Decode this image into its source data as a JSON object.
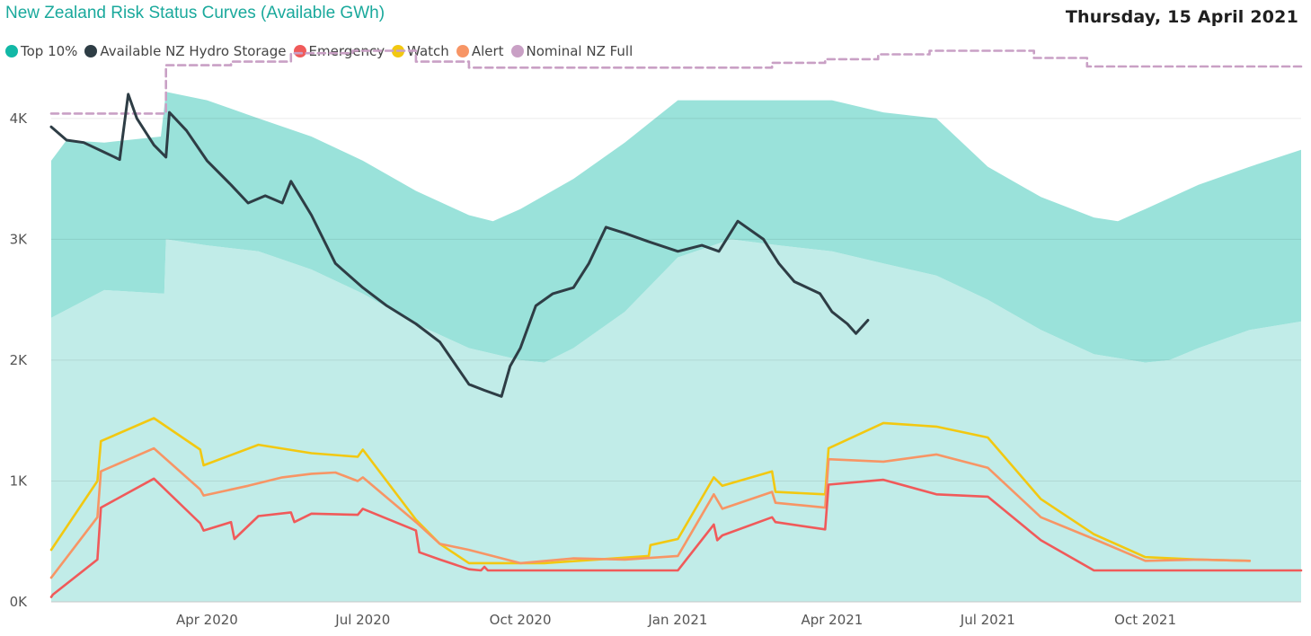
{
  "header": {
    "title": "New Zealand Risk Status Curves (Available GWh)",
    "date": "Thursday, 15 April 2021"
  },
  "legend": [
    {
      "label": "Top 10%",
      "color": "#12b8a6"
    },
    {
      "label": "Available NZ Hydro Storage",
      "color": "#2e3d45"
    },
    {
      "label": "Emergency",
      "color": "#f05a5a"
    },
    {
      "label": "Watch",
      "color": "#f2c811"
    },
    {
      "label": "Alert",
      "color": "#f79565"
    },
    {
      "label": "Nominal NZ Full",
      "color": "#c9a0c5"
    }
  ],
  "chart_data": {
    "type": "line",
    "title": "New Zealand Risk Status Curves (Available GWh)",
    "x_axis": {
      "type": "date",
      "range": [
        "2020-01-01",
        "2021-12-31"
      ],
      "ticks": [
        {
          "date": "2020-04-01",
          "label": "Apr 2020"
        },
        {
          "date": "2020-07-01",
          "label": "Jul 2020"
        },
        {
          "date": "2020-10-01",
          "label": "Oct 2020"
        },
        {
          "date": "2021-01-01",
          "label": "Jan 2021"
        },
        {
          "date": "2021-04-01",
          "label": "Apr 2021"
        },
        {
          "date": "2021-07-01",
          "label": "Jul 2021"
        },
        {
          "date": "2021-10-01",
          "label": "Oct 2021"
        }
      ]
    },
    "y_axis": {
      "range": [
        0,
        4400
      ],
      "ticks": [
        {
          "value": 0,
          "label": "0K"
        },
        {
          "value": 1000,
          "label": "1K"
        },
        {
          "value": 2000,
          "label": "2K"
        },
        {
          "value": 3000,
          "label": "3K"
        },
        {
          "value": 4000,
          "label": "4K"
        }
      ]
    },
    "grid": true,
    "legend_position": "top-left",
    "bands": {
      "top10_upper": [
        [
          "2020-01-01",
          3650
        ],
        [
          "2020-01-10",
          3820
        ],
        [
          "2020-02-01",
          3800
        ],
        [
          "2020-03-05",
          3850
        ],
        [
          "2020-03-08",
          4220
        ],
        [
          "2020-04-01",
          4150
        ],
        [
          "2020-05-01",
          4000
        ],
        [
          "2020-06-01",
          3850
        ],
        [
          "2020-07-01",
          3650
        ],
        [
          "2020-08-01",
          3400
        ],
        [
          "2020-09-01",
          3200
        ],
        [
          "2020-09-15",
          3150
        ],
        [
          "2020-10-01",
          3250
        ],
        [
          "2020-11-01",
          3500
        ],
        [
          "2020-12-01",
          3800
        ],
        [
          "2021-01-01",
          4150
        ],
        [
          "2021-02-01",
          4150
        ],
        [
          "2021-03-01",
          4150
        ],
        [
          "2021-04-01",
          4150
        ],
        [
          "2021-05-01",
          4050
        ],
        [
          "2021-06-01",
          4000
        ],
        [
          "2021-07-01",
          3600
        ],
        [
          "2021-08-01",
          3350
        ],
        [
          "2021-09-01",
          3180
        ],
        [
          "2021-09-15",
          3150
        ],
        [
          "2021-10-01",
          3250
        ],
        [
          "2021-11-01",
          3450
        ],
        [
          "2021-12-01",
          3600
        ],
        [
          "2021-12-31",
          3740
        ]
      ],
      "top10_lower": [
        [
          "2020-01-01",
          2350
        ],
        [
          "2020-02-01",
          2580
        ],
        [
          "2020-03-07",
          2550
        ],
        [
          "2020-03-08",
          3000
        ],
        [
          "2020-04-01",
          2950
        ],
        [
          "2020-05-01",
          2900
        ],
        [
          "2020-06-01",
          2750
        ],
        [
          "2020-07-01",
          2550
        ],
        [
          "2020-08-01",
          2300
        ],
        [
          "2020-09-01",
          2100
        ],
        [
          "2020-10-01",
          2000
        ],
        [
          "2020-10-15",
          1980
        ],
        [
          "2020-11-01",
          2100
        ],
        [
          "2020-12-01",
          2400
        ],
        [
          "2021-01-01",
          2850
        ],
        [
          "2021-02-01",
          3000
        ],
        [
          "2021-03-01",
          2950
        ],
        [
          "2021-04-01",
          2900
        ],
        [
          "2021-05-01",
          2800
        ],
        [
          "2021-06-01",
          2700
        ],
        [
          "2021-07-01",
          2500
        ],
        [
          "2021-08-01",
          2250
        ],
        [
          "2021-09-01",
          2050
        ],
        [
          "2021-10-01",
          1980
        ],
        [
          "2021-10-15",
          2000
        ],
        [
          "2021-11-01",
          2100
        ],
        [
          "2021-12-01",
          2250
        ],
        [
          "2021-12-31",
          2320
        ]
      ]
    },
    "series": [
      {
        "name": "Available NZ Hydro Storage",
        "color": "#2e3d45",
        "points": [
          [
            "2020-01-01",
            3930
          ],
          [
            "2020-01-10",
            3820
          ],
          [
            "2020-01-20",
            3800
          ],
          [
            "2020-02-01",
            3720
          ],
          [
            "2020-02-10",
            3660
          ],
          [
            "2020-02-15",
            4200
          ],
          [
            "2020-02-20",
            4000
          ],
          [
            "2020-03-01",
            3780
          ],
          [
            "2020-03-08",
            3680
          ],
          [
            "2020-03-10",
            4050
          ],
          [
            "2020-03-20",
            3900
          ],
          [
            "2020-04-01",
            3650
          ],
          [
            "2020-04-15",
            3450
          ],
          [
            "2020-04-25",
            3300
          ],
          [
            "2020-05-05",
            3360
          ],
          [
            "2020-05-15",
            3300
          ],
          [
            "2020-05-20",
            3480
          ],
          [
            "2020-06-01",
            3200
          ],
          [
            "2020-06-15",
            2800
          ],
          [
            "2020-07-01",
            2600
          ],
          [
            "2020-07-15",
            2450
          ],
          [
            "2020-08-01",
            2300
          ],
          [
            "2020-08-15",
            2150
          ],
          [
            "2020-09-01",
            1800
          ],
          [
            "2020-09-10",
            1750
          ],
          [
            "2020-09-20",
            1700
          ],
          [
            "2020-09-25",
            1950
          ],
          [
            "2020-10-01",
            2100
          ],
          [
            "2020-10-10",
            2450
          ],
          [
            "2020-10-20",
            2550
          ],
          [
            "2020-11-01",
            2600
          ],
          [
            "2020-11-10",
            2800
          ],
          [
            "2020-11-20",
            3100
          ],
          [
            "2020-12-01",
            3050
          ],
          [
            "2020-12-15",
            2980
          ],
          [
            "2021-01-01",
            2900
          ],
          [
            "2021-01-15",
            2950
          ],
          [
            "2021-01-25",
            2900
          ],
          [
            "2021-02-05",
            3150
          ],
          [
            "2021-02-20",
            3000
          ],
          [
            "2021-03-01",
            2800
          ],
          [
            "2021-03-10",
            2650
          ],
          [
            "2021-03-25",
            2550
          ],
          [
            "2021-04-01",
            2400
          ],
          [
            "2021-04-10",
            2300
          ],
          [
            "2021-04-15",
            2220
          ],
          [
            "2021-04-22",
            2330
          ]
        ]
      },
      {
        "name": "Watch",
        "color": "#f2c811",
        "points": [
          [
            "2020-01-01",
            430
          ],
          [
            "2020-01-28",
            1000
          ],
          [
            "2020-01-30",
            1330
          ],
          [
            "2020-03-01",
            1520
          ],
          [
            "2020-03-28",
            1260
          ],
          [
            "2020-03-30",
            1130
          ],
          [
            "2020-05-01",
            1300
          ],
          [
            "2020-06-01",
            1230
          ],
          [
            "2020-06-28",
            1200
          ],
          [
            "2020-07-01",
            1260
          ],
          [
            "2020-08-01",
            680
          ],
          [
            "2020-08-15",
            480
          ],
          [
            "2020-09-01",
            320
          ],
          [
            "2020-10-15",
            320
          ],
          [
            "2020-12-15",
            380
          ],
          [
            "2020-12-16",
            470
          ],
          [
            "2021-01-01",
            520
          ],
          [
            "2021-01-22",
            1030
          ],
          [
            "2021-01-27",
            960
          ],
          [
            "2021-02-25",
            1080
          ],
          [
            "2021-02-27",
            910
          ],
          [
            "2021-03-28",
            890
          ],
          [
            "2021-03-30",
            1270
          ],
          [
            "2021-05-01",
            1480
          ],
          [
            "2021-06-01",
            1450
          ],
          [
            "2021-07-01",
            1360
          ],
          [
            "2021-08-01",
            850
          ],
          [
            "2021-09-01",
            560
          ],
          [
            "2021-10-01",
            370
          ],
          [
            "2021-11-01",
            350
          ],
          [
            "2021-12-01",
            340
          ]
        ]
      },
      {
        "name": "Alert",
        "color": "#f79565",
        "points": [
          [
            "2020-01-01",
            200
          ],
          [
            "2020-01-28",
            700
          ],
          [
            "2020-01-30",
            1080
          ],
          [
            "2020-03-01",
            1270
          ],
          [
            "2020-03-28",
            930
          ],
          [
            "2020-03-30",
            880
          ],
          [
            "2020-04-25",
            960
          ],
          [
            "2020-05-15",
            1030
          ],
          [
            "2020-06-01",
            1060
          ],
          [
            "2020-06-15",
            1070
          ],
          [
            "2020-06-28",
            1000
          ],
          [
            "2020-07-01",
            1030
          ],
          [
            "2020-08-01",
            660
          ],
          [
            "2020-08-15",
            480
          ],
          [
            "2020-09-01",
            430
          ],
          [
            "2020-10-01",
            320
          ],
          [
            "2020-11-01",
            360
          ],
          [
            "2020-12-01",
            350
          ],
          [
            "2021-01-01",
            380
          ],
          [
            "2021-01-22",
            890
          ],
          [
            "2021-01-27",
            770
          ],
          [
            "2021-02-25",
            910
          ],
          [
            "2021-02-27",
            820
          ],
          [
            "2021-03-28",
            780
          ],
          [
            "2021-03-30",
            1180
          ],
          [
            "2021-05-01",
            1160
          ],
          [
            "2021-06-01",
            1220
          ],
          [
            "2021-07-01",
            1110
          ],
          [
            "2021-08-01",
            700
          ],
          [
            "2021-09-01",
            520
          ],
          [
            "2021-10-01",
            340
          ],
          [
            "2021-11-01",
            350
          ],
          [
            "2021-12-01",
            340
          ]
        ]
      },
      {
        "name": "Emergency",
        "color": "#f05a5a",
        "points": [
          [
            "2020-01-01",
            40
          ],
          [
            "2020-01-02",
            60
          ],
          [
            "2020-01-28",
            350
          ],
          [
            "2020-01-30",
            780
          ],
          [
            "2020-03-01",
            1020
          ],
          [
            "2020-03-28",
            650
          ],
          [
            "2020-03-30",
            590
          ],
          [
            "2020-04-15",
            660
          ],
          [
            "2020-04-17",
            520
          ],
          [
            "2020-05-01",
            710
          ],
          [
            "2020-05-20",
            740
          ],
          [
            "2020-05-22",
            660
          ],
          [
            "2020-06-01",
            730
          ],
          [
            "2020-06-28",
            720
          ],
          [
            "2020-07-01",
            770
          ],
          [
            "2020-08-01",
            590
          ],
          [
            "2020-08-03",
            410
          ],
          [
            "2020-08-15",
            350
          ],
          [
            "2020-09-01",
            270
          ],
          [
            "2020-09-08",
            260
          ],
          [
            "2020-09-10",
            290
          ],
          [
            "2020-09-12",
            260
          ],
          [
            "2021-01-01",
            260
          ],
          [
            "2021-01-22",
            640
          ],
          [
            "2021-01-24",
            510
          ],
          [
            "2021-01-27",
            550
          ],
          [
            "2021-02-25",
            700
          ],
          [
            "2021-02-27",
            660
          ],
          [
            "2021-03-28",
            600
          ],
          [
            "2021-03-30",
            970
          ],
          [
            "2021-05-01",
            1010
          ],
          [
            "2021-06-01",
            890
          ],
          [
            "2021-07-01",
            870
          ],
          [
            "2021-08-01",
            510
          ],
          [
            "2021-09-01",
            260
          ],
          [
            "2021-12-31",
            260
          ]
        ]
      },
      {
        "name": "Nominal NZ Full",
        "color": "#c9a0c5",
        "dashed": true,
        "points": [
          [
            "2020-01-01",
            4040
          ],
          [
            "2020-03-08",
            4040
          ],
          [
            "2020-03-08",
            4440
          ],
          [
            "2020-04-15",
            4440
          ],
          [
            "2020-04-15",
            4470
          ],
          [
            "2020-05-20",
            4470
          ],
          [
            "2020-05-20",
            4540
          ],
          [
            "2020-06-25",
            4540
          ],
          [
            "2020-06-25",
            4560
          ],
          [
            "2020-08-01",
            4560
          ],
          [
            "2020-08-01",
            4470
          ],
          [
            "2020-09-01",
            4470
          ],
          [
            "2020-09-01",
            4420
          ],
          [
            "2021-02-25",
            4420
          ],
          [
            "2021-02-25",
            4460
          ],
          [
            "2021-03-28",
            4460
          ],
          [
            "2021-03-28",
            4490
          ],
          [
            "2021-04-28",
            4490
          ],
          [
            "2021-04-28",
            4530
          ],
          [
            "2021-05-28",
            4530
          ],
          [
            "2021-05-28",
            4560
          ],
          [
            "2021-07-28",
            4560
          ],
          [
            "2021-07-28",
            4500
          ],
          [
            "2021-08-28",
            4500
          ],
          [
            "2021-08-28",
            4430
          ],
          [
            "2021-12-31",
            4430
          ]
        ]
      }
    ]
  }
}
